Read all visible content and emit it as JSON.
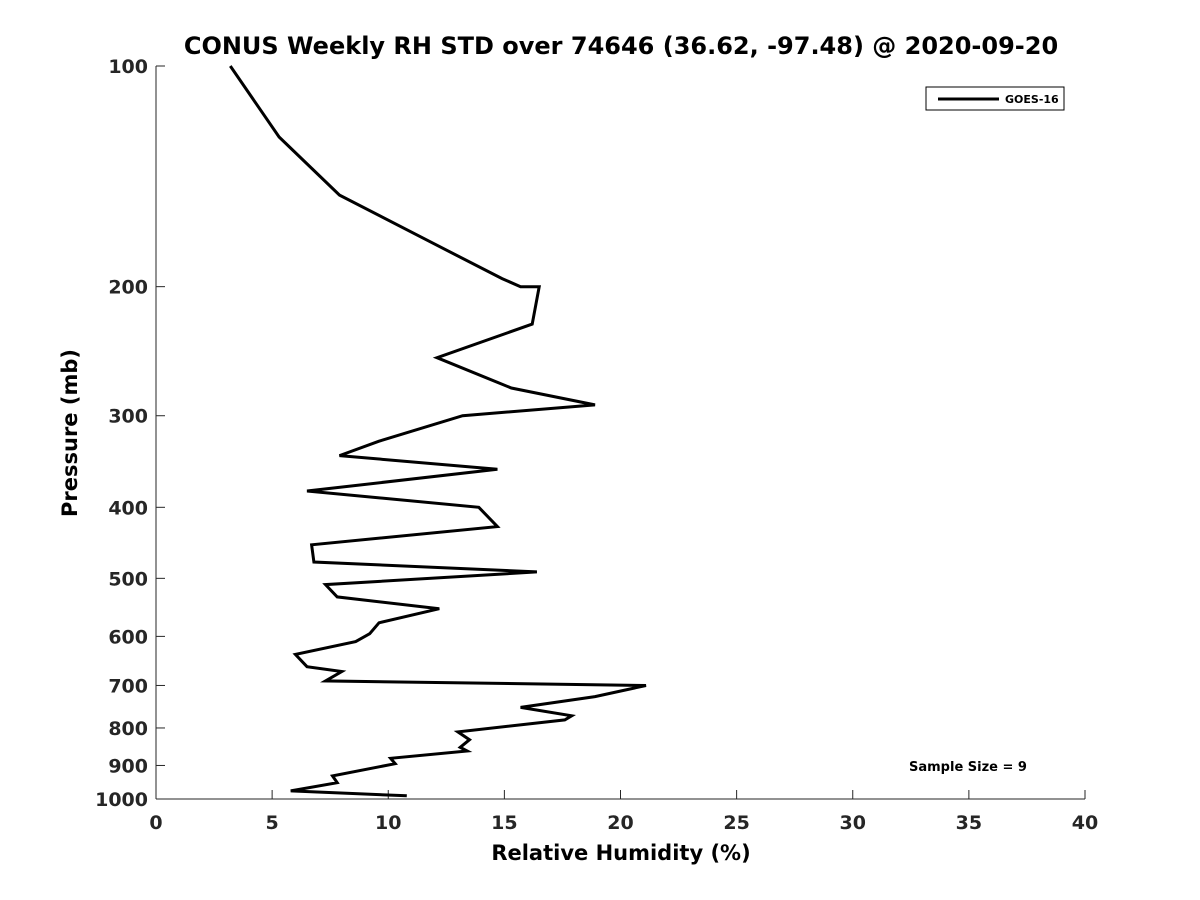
{
  "chart_data": {
    "type": "line",
    "title": "CONUS Weekly RH STD over 74646 (36.62, -97.48) @ 2020-09-20",
    "xlabel": "Relative Humidity (%)",
    "ylabel": "Pressure (mb)",
    "xlim": [
      0,
      40
    ],
    "ylim": [
      100,
      1000
    ],
    "y_scale": "log",
    "y_reversed": true,
    "x_ticks": [
      0,
      5,
      10,
      15,
      20,
      25,
      30,
      35,
      40
    ],
    "x_tick_labels": [
      "0",
      "5",
      "10",
      "15",
      "20",
      "25",
      "30",
      "35",
      "40"
    ],
    "y_ticks": [
      100,
      200,
      300,
      400,
      500,
      600,
      700,
      800,
      900,
      1000
    ],
    "y_tick_labels": [
      "100",
      "200",
      "300",
      "400",
      "500",
      "600",
      "700",
      "800",
      "900",
      "1000"
    ],
    "grid": false,
    "legend_position": "top-right",
    "series": [
      {
        "name": "GOES-16",
        "color": "#000000",
        "points": [
          [
            3.2,
            100
          ],
          [
            5.3,
            125
          ],
          [
            7.9,
            150
          ],
          [
            12.0,
            175
          ],
          [
            14.9,
            195
          ],
          [
            15.7,
            200
          ],
          [
            16.5,
            200
          ],
          [
            16.2,
            225
          ],
          [
            12.1,
            250
          ],
          [
            15.3,
            275
          ],
          [
            18.9,
            290
          ],
          [
            13.2,
            300
          ],
          [
            9.6,
            325
          ],
          [
            7.9,
            340
          ],
          [
            14.7,
            355
          ],
          [
            6.5,
            380
          ],
          [
            13.9,
            400
          ],
          [
            14.7,
            425
          ],
          [
            6.7,
            450
          ],
          [
            6.8,
            475
          ],
          [
            16.4,
            490
          ],
          [
            7.3,
            510
          ],
          [
            7.8,
            530
          ],
          [
            12.2,
            550
          ],
          [
            9.6,
            575
          ],
          [
            9.2,
            595
          ],
          [
            8.6,
            610
          ],
          [
            6.0,
            635
          ],
          [
            6.5,
            660
          ],
          [
            8.0,
            670
          ],
          [
            7.3,
            690
          ],
          [
            21.1,
            700
          ],
          [
            18.9,
            725
          ],
          [
            15.7,
            750
          ],
          [
            17.9,
            770
          ],
          [
            17.6,
            780
          ],
          [
            13.0,
            810
          ],
          [
            13.5,
            830
          ],
          [
            13.1,
            850
          ],
          [
            13.4,
            860
          ],
          [
            10.1,
            880
          ],
          [
            10.3,
            895
          ],
          [
            7.6,
            930
          ],
          [
            7.8,
            950
          ],
          [
            5.8,
            975
          ],
          [
            10.8,
            990
          ]
        ]
      }
    ],
    "legend": [
      "GOES-16"
    ],
    "annotations": [
      {
        "text": "Sample Size = 9",
        "position": "bottom-right"
      }
    ]
  }
}
